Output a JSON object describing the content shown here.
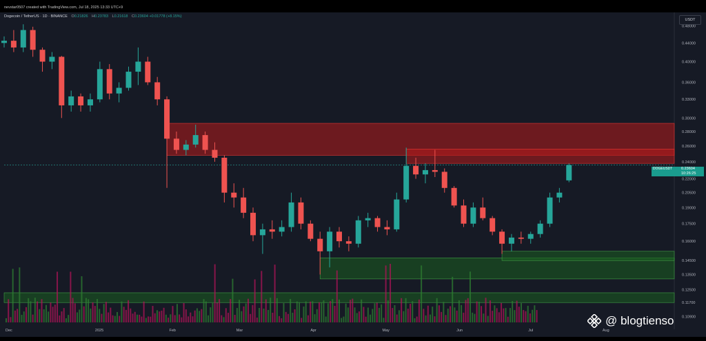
{
  "header": {
    "credit": "nevstar0507 created with TradingView.com, Jul 18, 2025 13:33 UTC+9",
    "symbol": "Dogecoin / TetherUS · 1D · BINANCE",
    "ohlc": [
      {
        "label": "O",
        "value": "0.21826"
      },
      {
        "label": "H",
        "value": "0.23783"
      },
      {
        "label": "L",
        "value": "0.21618"
      },
      {
        "label": "C",
        "value": "0.23604"
      },
      {
        "label": "",
        "value": "+0.01778 (+8.15%)"
      }
    ]
  },
  "price_axis": {
    "currency": "USDT",
    "ticks": [
      "0.48000",
      "0.44000",
      "0.40000",
      "0.36000",
      "0.33000",
      "0.30000",
      "0.28000",
      "0.26000",
      "0.24000",
      "0.22000",
      "0.20500",
      "0.19000",
      "0.17500",
      "0.16000",
      "0.14500",
      "0.13500",
      "0.12500",
      "0.11700",
      "0.10900"
    ]
  },
  "current_price": {
    "pair_tag": "DOGEUSDT",
    "value": "0.23604",
    "countdown": "10:26:25"
  },
  "time_axis": {
    "labels": [
      "Dec",
      "2025",
      "Feb",
      "Mar",
      "Apr",
      "May",
      "Jun",
      "Jul",
      "Aug"
    ]
  },
  "watermark": {
    "text": "@ blogtienso"
  },
  "colors": {
    "up": "#26a69a",
    "down": "#ef5350",
    "background": "#161a25",
    "resistance_zone": "#b71c1c",
    "support_zone": "#1b5e20"
  },
  "chart_data": {
    "type": "candlestick",
    "title": "Dogecoin / TetherUS · 1D · BINANCE",
    "x_range": [
      "2024-11-24",
      "2025-07-18"
    ],
    "ylim": [
      0.105,
      0.5
    ],
    "y_scale": "log",
    "grid": false,
    "candles": [
      {
        "date": "2024-11-24",
        "open": 0.44,
        "high": 0.455,
        "low": 0.43,
        "close": 0.445
      },
      {
        "date": "2024-11-28",
        "open": 0.445,
        "high": 0.47,
        "low": 0.42,
        "close": 0.43
      },
      {
        "date": "2024-12-02",
        "open": 0.43,
        "high": 0.484,
        "low": 0.42,
        "close": 0.47
      },
      {
        "date": "2024-12-06",
        "open": 0.47,
        "high": 0.478,
        "low": 0.41,
        "close": 0.425
      },
      {
        "date": "2024-12-10",
        "open": 0.425,
        "high": 0.43,
        "low": 0.38,
        "close": 0.4
      },
      {
        "date": "2024-12-14",
        "open": 0.4,
        "high": 0.42,
        "low": 0.385,
        "close": 0.41
      },
      {
        "date": "2024-12-18",
        "open": 0.41,
        "high": 0.412,
        "low": 0.3,
        "close": 0.32
      },
      {
        "date": "2024-12-22",
        "open": 0.32,
        "high": 0.345,
        "low": 0.31,
        "close": 0.335
      },
      {
        "date": "2024-12-26",
        "open": 0.335,
        "high": 0.34,
        "low": 0.31,
        "close": 0.32
      },
      {
        "date": "2024-12-30",
        "open": 0.32,
        "high": 0.34,
        "low": 0.31,
        "close": 0.33
      },
      {
        "date": "2025-01-03",
        "open": 0.33,
        "high": 0.4,
        "low": 0.325,
        "close": 0.385
      },
      {
        "date": "2025-01-07",
        "open": 0.385,
        "high": 0.395,
        "low": 0.33,
        "close": 0.34
      },
      {
        "date": "2025-01-11",
        "open": 0.34,
        "high": 0.36,
        "low": 0.325,
        "close": 0.35
      },
      {
        "date": "2025-01-15",
        "open": 0.35,
        "high": 0.39,
        "low": 0.345,
        "close": 0.38
      },
      {
        "date": "2025-01-19",
        "open": 0.38,
        "high": 0.43,
        "low": 0.355,
        "close": 0.4
      },
      {
        "date": "2025-01-23",
        "open": 0.4,
        "high": 0.41,
        "low": 0.355,
        "close": 0.36
      },
      {
        "date": "2025-01-27",
        "open": 0.36,
        "high": 0.37,
        "low": 0.32,
        "close": 0.33
      },
      {
        "date": "2025-01-31",
        "open": 0.33,
        "high": 0.335,
        "low": 0.21,
        "close": 0.27
      },
      {
        "date": "2025-02-04",
        "open": 0.27,
        "high": 0.28,
        "low": 0.25,
        "close": 0.255
      },
      {
        "date": "2025-02-08",
        "open": 0.255,
        "high": 0.268,
        "low": 0.248,
        "close": 0.262
      },
      {
        "date": "2025-02-12",
        "open": 0.262,
        "high": 0.29,
        "low": 0.258,
        "close": 0.275
      },
      {
        "date": "2025-02-16",
        "open": 0.275,
        "high": 0.28,
        "low": 0.25,
        "close": 0.255
      },
      {
        "date": "2025-02-20",
        "open": 0.255,
        "high": 0.265,
        "low": 0.24,
        "close": 0.245
      },
      {
        "date": "2025-02-24",
        "open": 0.245,
        "high": 0.248,
        "low": 0.195,
        "close": 0.205
      },
      {
        "date": "2025-02-28",
        "open": 0.205,
        "high": 0.215,
        "low": 0.19,
        "close": 0.2
      },
      {
        "date": "2025-03-04",
        "open": 0.2,
        "high": 0.21,
        "low": 0.18,
        "close": 0.185
      },
      {
        "date": "2025-03-08",
        "open": 0.185,
        "high": 0.19,
        "low": 0.16,
        "close": 0.165
      },
      {
        "date": "2025-03-12",
        "open": 0.165,
        "high": 0.175,
        "low": 0.15,
        "close": 0.17
      },
      {
        "date": "2025-03-16",
        "open": 0.17,
        "high": 0.178,
        "low": 0.162,
        "close": 0.168
      },
      {
        "date": "2025-03-20",
        "open": 0.168,
        "high": 0.178,
        "low": 0.164,
        "close": 0.172
      },
      {
        "date": "2025-03-24",
        "open": 0.172,
        "high": 0.205,
        "low": 0.168,
        "close": 0.195
      },
      {
        "date": "2025-03-28",
        "open": 0.195,
        "high": 0.2,
        "low": 0.17,
        "close": 0.175
      },
      {
        "date": "2025-04-01",
        "open": 0.175,
        "high": 0.178,
        "low": 0.16,
        "close": 0.162
      },
      {
        "date": "2025-04-05",
        "open": 0.162,
        "high": 0.168,
        "low": 0.135,
        "close": 0.152
      },
      {
        "date": "2025-04-09",
        "open": 0.152,
        "high": 0.172,
        "low": 0.14,
        "close": 0.168
      },
      {
        "date": "2025-04-13",
        "open": 0.168,
        "high": 0.172,
        "low": 0.155,
        "close": 0.16
      },
      {
        "date": "2025-04-17",
        "open": 0.16,
        "high": 0.164,
        "low": 0.152,
        "close": 0.158
      },
      {
        "date": "2025-04-21",
        "open": 0.158,
        "high": 0.182,
        "low": 0.155,
        "close": 0.178
      },
      {
        "date": "2025-04-25",
        "open": 0.178,
        "high": 0.185,
        "low": 0.172,
        "close": 0.18
      },
      {
        "date": "2025-04-29",
        "open": 0.18,
        "high": 0.182,
        "low": 0.168,
        "close": 0.172
      },
      {
        "date": "2025-05-03",
        "open": 0.172,
        "high": 0.178,
        "low": 0.165,
        "close": 0.17
      },
      {
        "date": "2025-05-07",
        "open": 0.17,
        "high": 0.205,
        "low": 0.168,
        "close": 0.198
      },
      {
        "date": "2025-05-11",
        "open": 0.198,
        "high": 0.258,
        "low": 0.195,
        "close": 0.235
      },
      {
        "date": "2025-05-15",
        "open": 0.235,
        "high": 0.245,
        "low": 0.22,
        "close": 0.225
      },
      {
        "date": "2025-05-19",
        "open": 0.225,
        "high": 0.238,
        "low": 0.215,
        "close": 0.23
      },
      {
        "date": "2025-05-23",
        "open": 0.23,
        "high": 0.255,
        "low": 0.222,
        "close": 0.228
      },
      {
        "date": "2025-05-27",
        "open": 0.228,
        "high": 0.232,
        "low": 0.205,
        "close": 0.21
      },
      {
        "date": "2025-05-31",
        "open": 0.21,
        "high": 0.212,
        "low": 0.19,
        "close": 0.192
      },
      {
        "date": "2025-06-04",
        "open": 0.192,
        "high": 0.198,
        "low": 0.172,
        "close": 0.175
      },
      {
        "date": "2025-06-08",
        "open": 0.175,
        "high": 0.195,
        "low": 0.172,
        "close": 0.19
      },
      {
        "date": "2025-06-12",
        "open": 0.19,
        "high": 0.2,
        "low": 0.178,
        "close": 0.18
      },
      {
        "date": "2025-06-16",
        "open": 0.18,
        "high": 0.182,
        "low": 0.165,
        "close": 0.168
      },
      {
        "date": "2025-06-20",
        "open": 0.168,
        "high": 0.17,
        "low": 0.15,
        "close": 0.158
      },
      {
        "date": "2025-06-24",
        "open": 0.158,
        "high": 0.166,
        "low": 0.152,
        "close": 0.163
      },
      {
        "date": "2025-06-28",
        "open": 0.163,
        "high": 0.168,
        "low": 0.158,
        "close": 0.162
      },
      {
        "date": "2025-07-02",
        "open": 0.162,
        "high": 0.168,
        "low": 0.158,
        "close": 0.166
      },
      {
        "date": "2025-07-06",
        "open": 0.166,
        "high": 0.178,
        "low": 0.163,
        "close": 0.175
      },
      {
        "date": "2025-07-10",
        "open": 0.175,
        "high": 0.205,
        "low": 0.172,
        "close": 0.2
      },
      {
        "date": "2025-07-14",
        "open": 0.2,
        "high": 0.21,
        "low": 0.195,
        "close": 0.205
      },
      {
        "date": "2025-07-18",
        "open": 0.21826,
        "high": 0.23783,
        "low": 0.21618,
        "close": 0.23604
      }
    ],
    "zones": [
      {
        "kind": "resistance",
        "from": "2025-01-31",
        "to": "2025-07-18",
        "y_low": 0.248,
        "y_high": 0.292
      },
      {
        "kind": "resistance",
        "from": "2025-05-11",
        "to": "2025-07-18",
        "y_low": 0.238,
        "y_high": 0.256
      },
      {
        "kind": "support",
        "from": "2025-04-05",
        "to": "2025-07-18",
        "y_low": 0.132,
        "y_high": 0.147
      },
      {
        "kind": "support",
        "from": "2025-06-20",
        "to": "2025-07-18",
        "y_low": 0.145,
        "y_high": 0.152
      },
      {
        "kind": "support",
        "from": "2024-11-24",
        "to": "2025-07-18",
        "y_low": 0.117,
        "y_high": 0.123
      }
    ]
  }
}
